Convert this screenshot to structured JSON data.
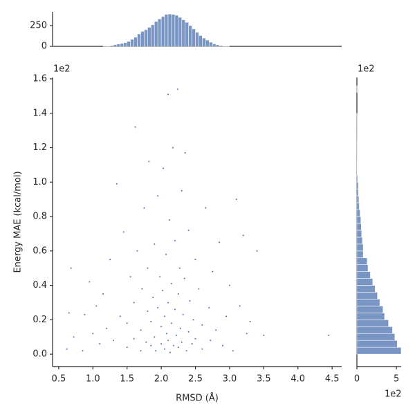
{
  "chart_data": [
    {
      "type": "scatter",
      "xlabel": "RMSD (Å)",
      "ylabel": "Energy MAE (kcal/mol)",
      "y_offset_label": "1e2",
      "color": "#4c72b0",
      "x": [
        0.62,
        0.65,
        0.68,
        0.72,
        0.85,
        0.88,
        0.95,
        1.0,
        1.05,
        1.1,
        1.15,
        1.2,
        1.25,
        1.3,
        1.35,
        1.4,
        1.45,
        1.5,
        1.5,
        1.55,
        1.6,
        1.6,
        1.62,
        1.65,
        1.7,
        1.7,
        1.72,
        1.75,
        1.78,
        1.8,
        1.8,
        1.82,
        1.85,
        1.85,
        1.88,
        1.9,
        1.9,
        1.92,
        1.95,
        1.95,
        1.98,
        2.0,
        2.0,
        2.02,
        2.03,
        2.05,
        2.05,
        2.07,
        2.08,
        2.1,
        2.1,
        2.1,
        2.12,
        2.13,
        2.15,
        2.15,
        2.17,
        2.18,
        2.2,
        2.2,
        2.22,
        2.24,
        2.25,
        2.25,
        2.27,
        2.28,
        2.3,
        2.3,
        2.32,
        2.34,
        2.35,
        2.37,
        2.4,
        2.4,
        2.42,
        2.45,
        2.47,
        2.5,
        2.5,
        2.55,
        2.6,
        2.6,
        2.65,
        2.7,
        2.72,
        2.75,
        2.8,
        2.85,
        2.9,
        2.95,
        3.0,
        3.05,
        3.1,
        3.15,
        3.2,
        3.25,
        3.3,
        3.4,
        3.5,
        4.45
      ],
      "y": [
        0.03,
        0.24,
        0.5,
        0.1,
        0.02,
        0.23,
        0.42,
        0.12,
        0.28,
        0.06,
        0.35,
        0.15,
        0.55,
        0.08,
        0.99,
        0.22,
        0.71,
        0.04,
        0.18,
        0.45,
        0.09,
        0.3,
        1.32,
        0.6,
        0.02,
        0.14,
        0.38,
        0.85,
        0.07,
        0.25,
        0.5,
        1.12,
        0.05,
        0.19,
        0.33,
        0.64,
        0.1,
        0.02,
        0.27,
        0.92,
        0.45,
        0.06,
        0.16,
        0.37,
        1.08,
        0.03,
        0.22,
        0.58,
        0.12,
        1.51,
        0.08,
        0.3,
        0.78,
        0.01,
        0.18,
        0.41,
        1.2,
        0.05,
        0.26,
        0.66,
        0.11,
        1.54,
        0.04,
        0.35,
        0.5,
        0.15,
        0.95,
        0.07,
        0.23,
        0.44,
        1.17,
        0.02,
        0.13,
        0.72,
        0.31,
        0.06,
        0.2,
        0.55,
        0.09,
        0.38,
        0.03,
        0.17,
        0.85,
        0.27,
        0.08,
        0.48,
        0.14,
        0.65,
        0.05,
        0.22,
        0.4,
        0.02,
        0.9,
        0.28,
        0.69,
        0.12,
        0.19,
        0.6,
        0.11,
        0.11
      ],
      "xlim": [
        0.41,
        4.64
      ],
      "ylim": [
        -0.072,
        1.608
      ],
      "xticks": [
        0.5,
        {
          "value": 1,
          "label": "1.0"
        },
        1.5,
        {
          "value": 2,
          "label": "2.0"
        },
        2.5,
        {
          "value": 3,
          "label": "3.0"
        },
        3.5,
        {
          "value": 4,
          "label": "4.0"
        },
        4.5
      ],
      "yticks": [
        {
          "value": 0,
          "label": "0.0"
        },
        0.2,
        0.4,
        0.6,
        0.8,
        {
          "value": 1,
          "label": "1.0"
        },
        1.2,
        1.4,
        1.6
      ]
    },
    {
      "type": "histogram",
      "color": "#4c72b0",
      "bins": [
        1.15,
        1.2,
        1.25,
        1.3,
        1.35,
        1.4,
        1.45,
        1.5,
        1.55,
        1.6,
        1.65,
        1.7,
        1.75,
        1.8,
        1.85,
        1.9,
        1.95,
        2.0,
        2.05,
        2.1,
        2.15,
        2.2,
        2.25,
        2.3,
        2.35,
        2.4,
        2.45,
        2.5,
        2.55,
        2.6,
        2.65,
        2.7,
        2.75,
        2.8,
        2.85,
        2.9,
        2.95,
        3.0
      ],
      "counts": [
        3,
        5,
        10,
        20,
        28,
        35,
        45,
        60,
        85,
        110,
        150,
        180,
        200,
        230,
        260,
        300,
        330,
        360,
        385,
        390,
        385,
        375,
        350,
        320,
        290,
        250,
        210,
        170,
        130,
        100,
        75,
        50,
        30,
        18,
        10,
        5,
        2
      ],
      "ylim": [
        0,
        417
      ],
      "yticks": [
        0,
        250
      ]
    },
    {
      "type": "histogram",
      "orientation": "horizontal",
      "color": "#4c72b0",
      "y_offset_label": "1e2",
      "x_offset_label": "1e2",
      "bins": [
        0,
        0.04,
        0.08,
        0.12,
        0.16,
        0.2,
        0.24,
        0.28,
        0.32,
        0.36,
        0.4,
        0.44,
        0.48,
        0.52,
        0.56,
        0.6,
        0.64,
        0.68,
        0.72,
        0.76,
        0.8,
        0.84,
        0.88,
        0.92,
        0.96,
        1.0,
        1.04,
        1.08,
        1.12,
        1.16,
        1.2,
        1.24,
        1.28,
        1.32,
        1.36,
        1.4,
        1.44,
        1.48,
        1.52,
        1.56,
        1.6
      ],
      "counts": [
        560,
        510,
        480,
        450,
        400,
        350,
        330,
        290,
        260,
        230,
        200,
        170,
        140,
        130,
        80,
        80,
        70,
        60,
        55,
        50,
        40,
        30,
        25,
        20,
        20,
        10,
        5,
        5,
        3,
        2,
        2,
        1,
        1,
        1,
        1,
        0,
        0,
        0,
        1,
        0
      ],
      "xlim": [
        0,
        560
      ],
      "xticks": [
        0,
        {
          "value": 500,
          "label": "5"
        }
      ]
    }
  ]
}
